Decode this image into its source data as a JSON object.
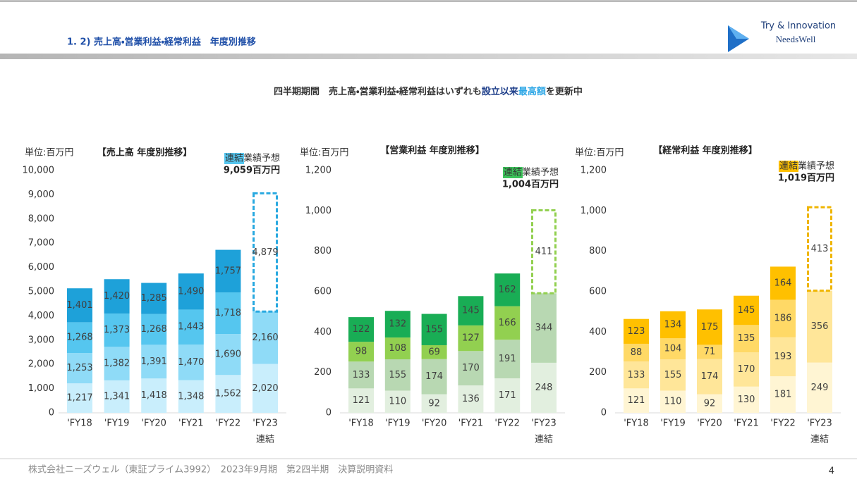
{
  "header": {
    "title": "1. 2) 売上高・営業利益・経常利益　年度別推移",
    "logo_tagline": "Try & Innovation",
    "logo_name": "NeedsWell"
  },
  "headline": {
    "parts": [
      "四半期期間　売上高・営業利益・経常利益はいずれも",
      "設立以来",
      "最高額",
      "を更新中"
    ]
  },
  "footer": {
    "text": "株式会社ニーズウェル（東証プライム3992）　2023年9月期　第2四半期　決算説明資料",
    "page": "4"
  },
  "chart_data": [
    {
      "type": "bar",
      "stacked": true,
      "title": "【売上高 年度別推移】",
      "unit": "単位:百万円",
      "categories": [
        "'FY18",
        "'FY19",
        "'FY20",
        "'FY21",
        "'FY22",
        "'FY23"
      ],
      "x_note": "連結",
      "ylim": [
        0,
        10000
      ],
      "yticks": [
        0,
        {
          "value": 1000,
          "label": "1,000"
        },
        {
          "value": 2000,
          "label": "2,000"
        },
        {
          "value": 3000,
          "label": "3,000"
        },
        {
          "value": 4000,
          "label": "4,000"
        },
        {
          "value": 5000,
          "label": "5,000"
        },
        {
          "value": 6000,
          "label": "6,000"
        },
        {
          "value": 7000,
          "label": "7,000"
        },
        {
          "value": 8000,
          "label": "8,000"
        },
        {
          "value": 9000,
          "label": "9,000"
        },
        {
          "value": 10000,
          "label": "10,000"
        }
      ],
      "series": [
        {
          "color": "#c9eefc",
          "values": [
            1217,
            1341,
            1418,
            1348,
            1562,
            2020
          ],
          "value_labels": [
            "1,217",
            "1,341",
            "1,418",
            "1,348",
            "1,562",
            "2,020"
          ]
        },
        {
          "color": "#8fdbf7",
          "values": [
            1253,
            1382,
            1391,
            1470,
            1690,
            2160
          ],
          "value_labels": [
            "1,253",
            "1,382",
            "1,391",
            "1,470",
            "1,690",
            "2,160"
          ]
        },
        {
          "color": "#55c6ef",
          "values": [
            1268,
            1373,
            1268,
            1443,
            1718,
            null
          ],
          "value_labels": [
            "1,268",
            "1,373",
            "1,268",
            "1,443",
            "1,718",
            null
          ]
        },
        {
          "color": "#1ea1d9",
          "values": [
            1401,
            1420,
            1285,
            1490,
            1757,
            null
          ],
          "value_labels": [
            "1,401",
            "1,420",
            "1,285",
            "1,490",
            "1,757",
            null
          ]
        },
        {
          "color": "#29a9e0",
          "dashed": true,
          "values": [
            null,
            null,
            null,
            null,
            null,
            4879
          ],
          "value_labels": [
            null,
            null,
            null,
            null,
            null,
            "4,879"
          ]
        }
      ],
      "forecast": {
        "tag": "連結",
        "text": "業績予想",
        "total": "9,059百万円",
        "tag_color": "#55c6ef"
      }
    },
    {
      "type": "bar",
      "stacked": true,
      "title": "【営業利益 年度別推移】",
      "unit": "単位:百万円",
      "categories": [
        "'FY18",
        "'FY19",
        "'FY20",
        "'FY21",
        "'FY22",
        "'FY23"
      ],
      "x_note": "連結",
      "ylim": [
        0,
        1200
      ],
      "yticks": [
        0,
        200,
        400,
        600,
        800,
        {
          "value": 1000,
          "label": "1,000"
        },
        {
          "value": 1200,
          "label": "1,200"
        }
      ],
      "series": [
        {
          "color": "#e2efdf",
          "values": [
            121,
            110,
            92,
            136,
            171,
            248
          ]
        },
        {
          "color": "#b8d8b2",
          "values": [
            133,
            155,
            174,
            170,
            191,
            344
          ]
        },
        {
          "color": "#92d050",
          "values": [
            98,
            108,
            69,
            127,
            166,
            null
          ]
        },
        {
          "color": "#19ad55",
          "values": [
            122,
            132,
            155,
            145,
            162,
            null
          ]
        },
        {
          "color": "#92d050",
          "dashed": true,
          "values": [
            null,
            null,
            null,
            null,
            null,
            411
          ]
        }
      ],
      "forecast": {
        "tag": "連結",
        "text": "業績予想",
        "total": "1,004百万円",
        "tag_color": "#3cc35a"
      }
    },
    {
      "type": "bar",
      "stacked": true,
      "title": "【経常利益 年度別推移】",
      "unit": "単位:百万円",
      "categories": [
        "'FY18",
        "'FY19",
        "'FY20",
        "'FY21",
        "'FY22",
        "'FY23"
      ],
      "x_note": "連結",
      "ylim": [
        0,
        1200
      ],
      "yticks": [
        0,
        200,
        400,
        600,
        800,
        {
          "value": 1000,
          "label": "1,000"
        },
        {
          "value": 1200,
          "label": "1,200"
        }
      ],
      "series": [
        {
          "color": "#fff5d3",
          "values": [
            121,
            110,
            92,
            130,
            181,
            249
          ]
        },
        {
          "color": "#ffe699",
          "values": [
            133,
            155,
            174,
            170,
            193,
            356
          ]
        },
        {
          "color": "#ffd966",
          "values": [
            88,
            104,
            71,
            135,
            186,
            null
          ]
        },
        {
          "color": "#ffc000",
          "values": [
            123,
            134,
            175,
            145,
            164,
            null
          ]
        },
        {
          "color": "#efb500",
          "dashed": true,
          "values": [
            null,
            null,
            null,
            null,
            null,
            413
          ]
        }
      ],
      "forecast": {
        "tag": "連結",
        "text": "業績予想",
        "total": "1,019百万円",
        "tag_color": "#ffc000"
      }
    }
  ]
}
